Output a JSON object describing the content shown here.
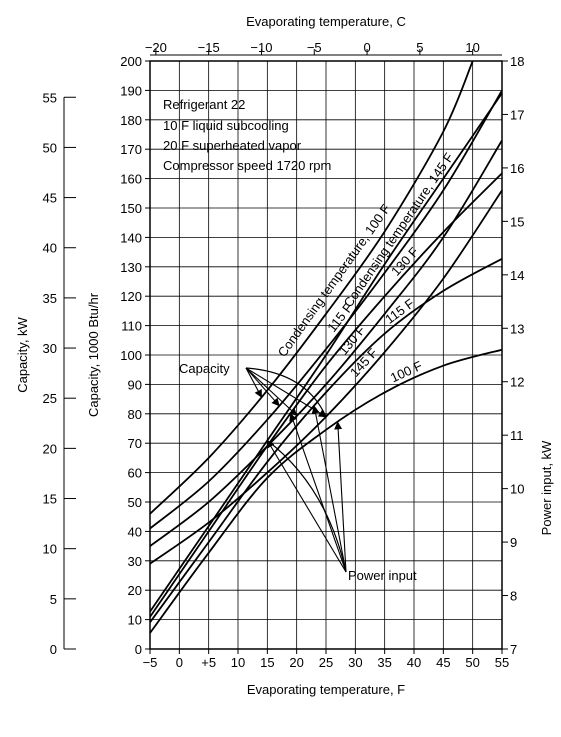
{
  "chart_data": {
    "type": "line",
    "x_bottom": {
      "label": "Evaporating temperature, F",
      "range": [
        -5,
        55
      ],
      "ticks": [
        -5,
        0,
        5,
        10,
        15,
        20,
        25,
        30,
        35,
        40,
        45,
        50,
        55
      ],
      "tick_labels": [
        "−5",
        "0",
        "+5",
        "10",
        "15",
        "20",
        "25",
        "30",
        "35",
        "40",
        "45",
        "50",
        "55"
      ]
    },
    "x_top": {
      "label": "Evaporating temperature, C",
      "ticks": [
        -20,
        -15,
        -10,
        -5,
        0,
        5,
        10
      ],
      "tick_labels": [
        "−20",
        "−15",
        "−10",
        "−5",
        "0",
        "5",
        "10"
      ]
    },
    "y_capacity_btu": {
      "label": "Capacity, 1000 Btu/hr",
      "range": [
        0,
        200
      ],
      "ticks": [
        0,
        10,
        20,
        30,
        40,
        50,
        60,
        70,
        80,
        90,
        100,
        110,
        120,
        130,
        140,
        150,
        160,
        170,
        180,
        190,
        200
      ]
    },
    "y_capacity_kw": {
      "label": "Capacity, kW",
      "ticks": [
        0,
        5,
        10,
        15,
        20,
        25,
        30,
        35,
        40,
        45,
        50,
        55
      ]
    },
    "y_power": {
      "label": "Power input, kW",
      "range": [
        7,
        18
      ],
      "ticks": [
        7,
        8,
        9,
        10,
        11,
        12,
        13,
        14,
        15,
        16,
        17,
        18
      ]
    },
    "grid": true,
    "notes": [
      "Refrigerant 22",
      "10 F liquid subcooling",
      "20 F superheated vapor",
      "Compressor speed 1720 rpm"
    ],
    "capacity_series": [
      {
        "name": "100 F",
        "x": [
          -5,
          5,
          15,
          25,
          35,
          45,
          50
        ],
        "y": [
          46,
          65,
          88,
          114,
          142,
          176,
          200
        ]
      },
      {
        "name": "115 F",
        "x": [
          -5,
          5,
          15,
          25,
          35,
          45,
          55
        ],
        "y": [
          41,
          57,
          78,
          102,
          128,
          156,
          190
        ]
      },
      {
        "name": "130 F",
        "x": [
          -5,
          5,
          15,
          25,
          35,
          45,
          55
        ],
        "y": [
          35,
          50,
          69,
          90,
          114,
          140,
          173
        ]
      },
      {
        "name": "145 F",
        "x": [
          -5,
          5,
          15,
          25,
          35,
          45,
          55
        ],
        "y": [
          29,
          43,
          60,
          79,
          101,
          126,
          156
        ]
      }
    ],
    "power_series": [
      {
        "name": "145 F",
        "x": [
          -5,
          5,
          15,
          25,
          35,
          45,
          55
        ],
        "y": [
          7.7,
          9.3,
          10.9,
          12.5,
          14.2,
          15.8,
          17.4
        ]
      },
      {
        "name": "130 F",
        "x": [
          -5,
          5,
          15,
          25,
          35,
          45,
          55
        ],
        "y": [
          7.6,
          9.2,
          10.8,
          12.3,
          13.6,
          14.8,
          15.9
        ]
      },
      {
        "name": "115 F",
        "x": [
          -5,
          5,
          15,
          25,
          35,
          45,
          55
        ],
        "y": [
          7.5,
          9.0,
          10.5,
          11.8,
          12.9,
          13.7,
          14.3
        ]
      },
      {
        "name": "100 F",
        "x": [
          -5,
          5,
          15,
          25,
          35,
          45,
          55
        ],
        "y": [
          7.3,
          8.8,
          10.2,
          11.1,
          11.8,
          12.3,
          12.6
        ]
      }
    ],
    "curve_labels": {
      "capacity_first": "Condensing temperature, 100 F",
      "capacity_rest": [
        "115 F",
        "130 F",
        "145 F"
      ],
      "power_first": "Condensing temperature, 145 F",
      "power_rest": [
        "130 F",
        "115 F",
        "100 F"
      ]
    },
    "callouts": {
      "capacity": "Capacity",
      "power": "Power input"
    }
  }
}
